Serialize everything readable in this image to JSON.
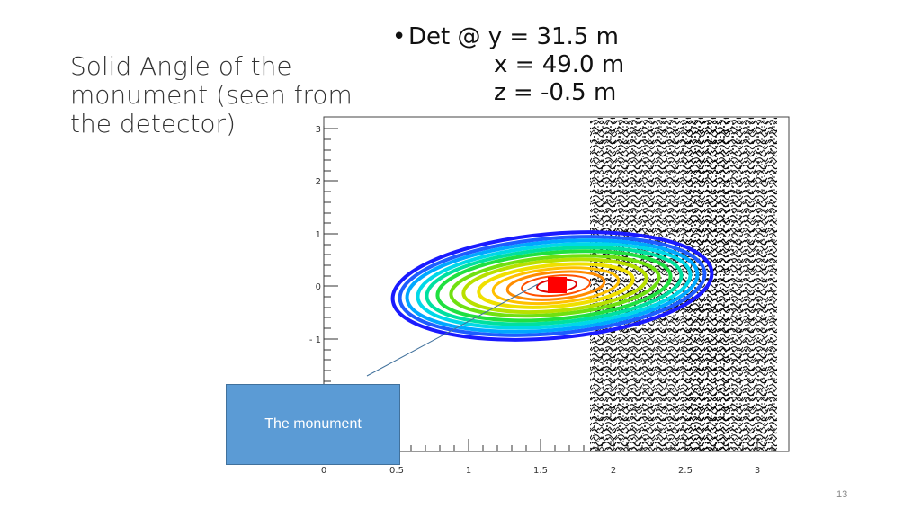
{
  "slide": {
    "title": "Solid Angle of the monument (seen from the detector)",
    "title_lines": [
      "Solid Angle of the",
      "monument (seen from",
      "the detector)"
    ],
    "det_line1": "Det @ y = 31.5 m",
    "det_line2": "x = 49.0 m",
    "det_line3": "z = -0.5 m",
    "callout": "The monument",
    "page_number": "13"
  },
  "colors": {
    "callout_fill": "#5b9bd5",
    "marker": "#ff0000",
    "noise": "#111111"
  },
  "chart_data": {
    "type": "heatmap",
    "x_ticks": [
      "0",
      "0.5",
      "1",
      "1.5",
      "2",
      "2.5",
      "3"
    ],
    "y_ticks": [
      "3",
      "2",
      "1",
      "0",
      "- 1"
    ],
    "xlim": [
      0,
      3.1
    ],
    "ylim": [
      -3,
      3.2
    ],
    "peak": {
      "x": 1.6,
      "y": 0
    },
    "title": "",
    "xlabel": "",
    "ylabel": ""
  }
}
